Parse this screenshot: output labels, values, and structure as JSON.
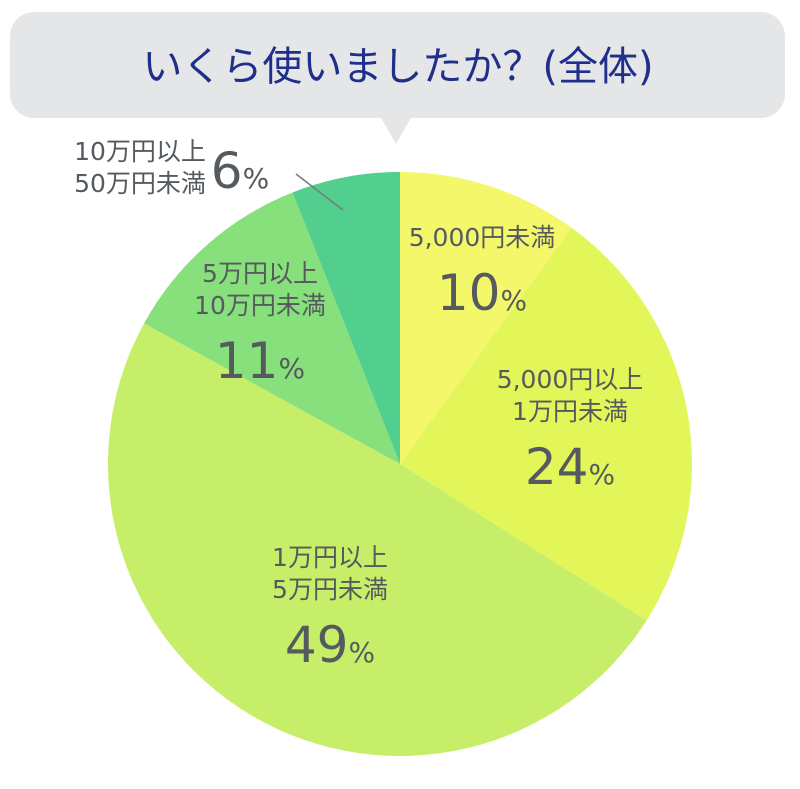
{
  "chart_data": {
    "type": "pie",
    "title": "いくら使いましたか？(全体)",
    "slices": [
      {
        "label_lines": [
          "5,000円未満"
        ],
        "value": 10,
        "color": "#f5f76a"
      },
      {
        "label_lines": [
          "5,000円以上",
          "1万円未満"
        ],
        "value": 24,
        "color": "#e2f65a"
      },
      {
        "label_lines": [
          "1万円以上",
          "5万円未満"
        ],
        "value": 49,
        "color": "#c6ee68"
      },
      {
        "label_lines": [
          "5万円以上",
          "10万円未満"
        ],
        "value": 11,
        "color": "#88e07c"
      },
      {
        "label_lines": [
          "10万円以上",
          "50万円未満"
        ],
        "value": 6,
        "color": "#52cf8e"
      }
    ],
    "percent_symbol": "%"
  },
  "colors": {
    "title_bubble": "#e5e6e8",
    "title_text": "#1f2f8a",
    "label_text": "#555a5f"
  }
}
